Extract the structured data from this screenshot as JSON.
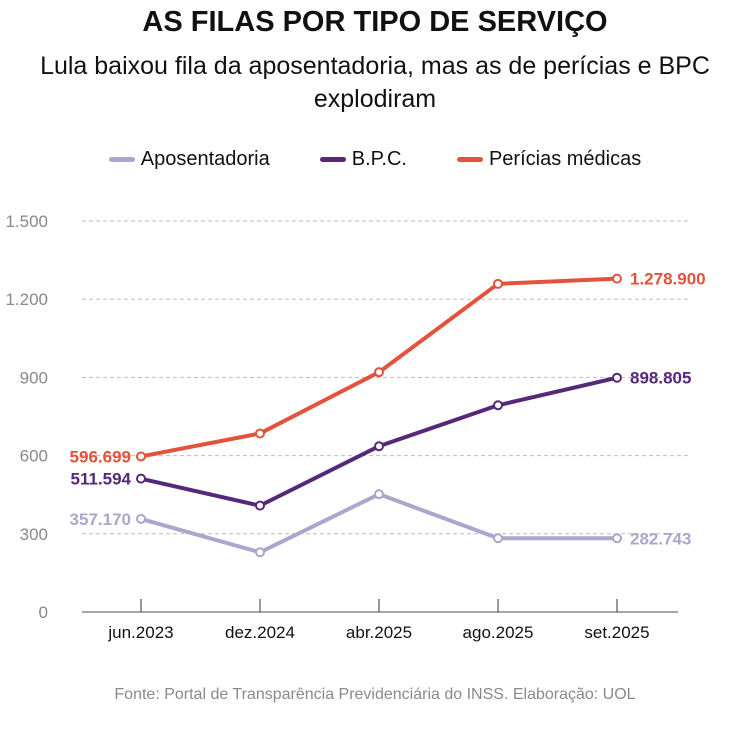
{
  "title": "AS FILAS POR TIPO DE SERVIÇO",
  "subtitle": "Lula baixou fila da aposentadoria, mas as de perícias e BPC explodiram",
  "source": "Fonte: Portal de Transparência Previdenciária do INSS. Elaboração: UOL",
  "chart_data": {
    "type": "line",
    "title": "AS FILAS POR TIPO DE SERVIÇO",
    "xlabel": "",
    "ylabel": "",
    "ylim": [
      0,
      1500
    ],
    "grid": true,
    "legend_position": "top",
    "categories": [
      "jun.2023",
      "dez.2024",
      "abr.2025",
      "ago.2025",
      "set.2025"
    ],
    "y_ticks": [
      0,
      300,
      600,
      900,
      1200,
      1500
    ],
    "y_tick_labels": [
      "0",
      "300",
      "600",
      "900",
      "1.200",
      "1.500"
    ],
    "series": [
      {
        "name": "Aposentadoria",
        "color": "#aba6cb",
        "values": [
          357.17,
          229,
          452,
          283,
          282.743
        ],
        "labels": {
          "first": "357.170",
          "last": "282.743"
        }
      },
      {
        "name": "B.P.C.",
        "color": "#56287a",
        "values": [
          511.594,
          408,
          636,
          793,
          898.805
        ],
        "labels": {
          "first": "511.594",
          "last": "898.805"
        }
      },
      {
        "name": "Perícias médicas",
        "color": "#e4523b",
        "values": [
          596.699,
          685,
          920,
          1259,
          1278.9
        ],
        "labels": {
          "first": "596.699",
          "last": "1.278.900"
        }
      }
    ]
  }
}
